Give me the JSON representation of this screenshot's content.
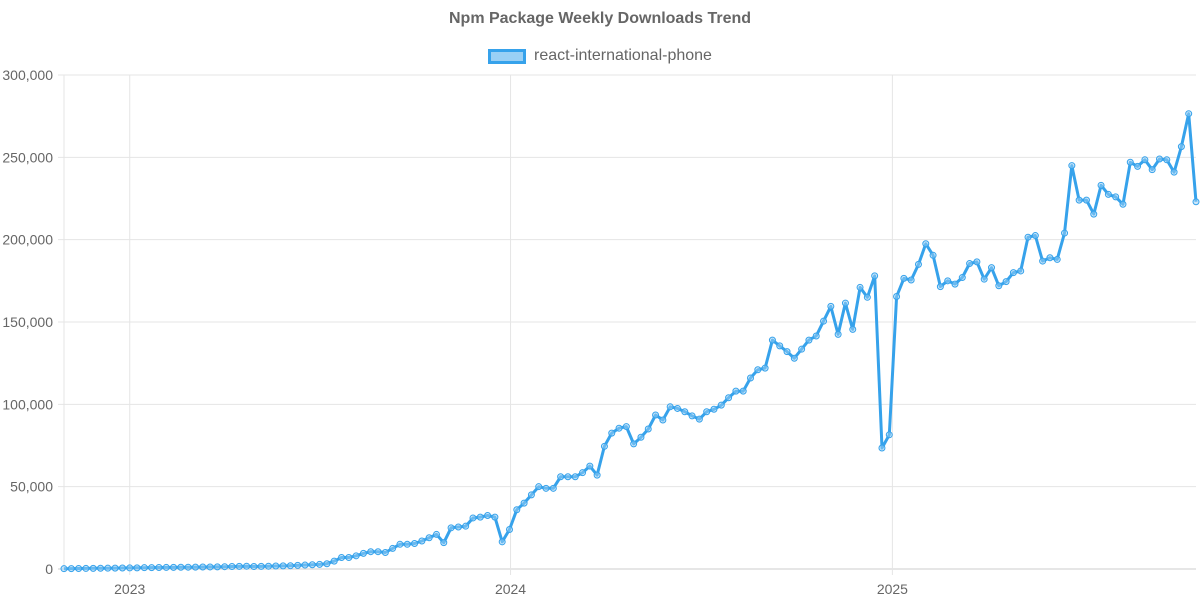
{
  "chart_data": {
    "type": "line",
    "title": "Npm Package Weekly Downloads Trend",
    "xlabel": "",
    "ylabel": "",
    "ylim": [
      0,
      300000
    ],
    "y_ticks": [
      "0",
      "50,000",
      "100,000",
      "150,000",
      "200,000",
      "250,000",
      "300,000"
    ],
    "x_ticks": [
      "2023",
      "2024",
      "2025"
    ],
    "grid": true,
    "legend": "top",
    "colors": {
      "line": "#36a2eb",
      "fill": "#9ad0f5"
    },
    "series": [
      {
        "name": "react-international-phone",
        "x": [
          "2022-10-30",
          "2022-11-06",
          "2022-11-13",
          "2022-11-20",
          "2022-11-27",
          "2022-12-04",
          "2022-12-11",
          "2022-12-18",
          "2022-12-25",
          "2023-01-01",
          "2023-01-08",
          "2023-01-15",
          "2023-01-22",
          "2023-01-29",
          "2023-02-05",
          "2023-02-12",
          "2023-02-19",
          "2023-02-26",
          "2023-03-05",
          "2023-03-12",
          "2023-03-19",
          "2023-03-26",
          "2023-04-02",
          "2023-04-09",
          "2023-04-16",
          "2023-04-23",
          "2023-04-30",
          "2023-05-07",
          "2023-05-14",
          "2023-05-21",
          "2023-05-28",
          "2023-06-04",
          "2023-06-11",
          "2023-06-18",
          "2023-06-25",
          "2023-07-02",
          "2023-07-09",
          "2023-07-16",
          "2023-07-23",
          "2023-07-30",
          "2023-08-06",
          "2023-08-13",
          "2023-08-20",
          "2023-08-27",
          "2023-09-03",
          "2023-09-10",
          "2023-09-17",
          "2023-09-24",
          "2023-10-01",
          "2023-10-08",
          "2023-10-15",
          "2023-10-22",
          "2023-10-29",
          "2023-11-05",
          "2023-11-12",
          "2023-11-19",
          "2023-11-26",
          "2023-12-03",
          "2023-12-10",
          "2023-12-17",
          "2023-12-24",
          "2023-12-31",
          "2024-01-07",
          "2024-01-14",
          "2024-01-21",
          "2024-01-28",
          "2024-02-04",
          "2024-02-11",
          "2024-02-18",
          "2024-02-25",
          "2024-03-03",
          "2024-03-10",
          "2024-03-17",
          "2024-03-24",
          "2024-03-31",
          "2024-04-07",
          "2024-04-14",
          "2024-04-21",
          "2024-04-28",
          "2024-05-05",
          "2024-05-12",
          "2024-05-19",
          "2024-05-26",
          "2024-06-02",
          "2024-06-09",
          "2024-06-16",
          "2024-06-23",
          "2024-06-30",
          "2024-07-07",
          "2024-07-14",
          "2024-07-21",
          "2024-07-28",
          "2024-08-04",
          "2024-08-11",
          "2024-08-18",
          "2024-08-25",
          "2024-09-01",
          "2024-09-08",
          "2024-09-15",
          "2024-09-22",
          "2024-09-29",
          "2024-10-06",
          "2024-10-13",
          "2024-10-20",
          "2024-10-27",
          "2024-11-03",
          "2024-11-10",
          "2024-11-17",
          "2024-11-24",
          "2024-12-01",
          "2024-12-08",
          "2024-12-15",
          "2024-12-22",
          "2024-12-29",
          "2025-01-05",
          "2025-01-12",
          "2025-01-19",
          "2025-01-26",
          "2025-02-02",
          "2025-02-09",
          "2025-02-16",
          "2025-02-23",
          "2025-03-02",
          "2025-03-09",
          "2025-03-16",
          "2025-03-23",
          "2025-03-30",
          "2025-04-06",
          "2025-04-13",
          "2025-04-20",
          "2025-04-27",
          "2025-05-04",
          "2025-05-11",
          "2025-05-18",
          "2025-05-25",
          "2025-06-01",
          "2025-06-08",
          "2025-06-15",
          "2025-06-22",
          "2025-06-29",
          "2025-07-06",
          "2025-07-13",
          "2025-07-20",
          "2025-07-27",
          "2025-08-03",
          "2025-08-10",
          "2025-08-17",
          "2025-08-24",
          "2025-08-31",
          "2025-09-07",
          "2025-09-14",
          "2025-09-21",
          "2025-09-28",
          "2025-10-05",
          "2025-10-12",
          "2025-10-19"
        ],
        "values": [
          200,
          250,
          300,
          350,
          400,
          450,
          500,
          550,
          600,
          650,
          700,
          800,
          850,
          900,
          950,
          1000,
          1050,
          1100,
          1150,
          1200,
          1250,
          1300,
          1400,
          1500,
          1600,
          1700,
          1500,
          1600,
          1700,
          1800,
          1900,
          2000,
          2200,
          2400,
          2600,
          2800,
          3200,
          4800,
          7000,
          7000,
          8000,
          9500,
          10500,
          10500,
          10000,
          12500,
          15000,
          15000,
          15500,
          17000,
          19000,
          21000,
          16000,
          25000,
          25500,
          26000,
          31000,
          31500,
          32500,
          31500,
          16500,
          24000,
          36000,
          40000,
          45000,
          50000,
          49000,
          49000,
          56000,
          56000,
          56000,
          58500,
          62500,
          57000,
          74500,
          82500,
          85500,
          86500,
          76000,
          80000,
          85000,
          93500,
          90500,
          98500,
          97500,
          95500,
          93000,
          91000,
          95500,
          97000,
          99500,
          104000,
          108000,
          108000,
          116000,
          121000,
          122000,
          139000,
          135500,
          132000,
          128000,
          133500,
          139000,
          141500,
          150500,
          159500,
          142500,
          161500,
          145500,
          171000,
          165000,
          178000,
          73500,
          81500,
          165500,
          176500,
          175500,
          185000,
          197500,
          190500,
          171500,
          175000,
          173000,
          177000,
          185500,
          186500,
          176000,
          183000,
          172000,
          174500,
          180000,
          181000,
          201500,
          202500,
          187000,
          189000,
          188000,
          204000,
          245000,
          224000,
          224000,
          215500,
          233000,
          227500,
          226000,
          221500,
          247000,
          244500,
          248500,
          242500,
          249000,
          248500,
          241000,
          256500,
          276500,
          223000
        ]
      }
    ]
  }
}
